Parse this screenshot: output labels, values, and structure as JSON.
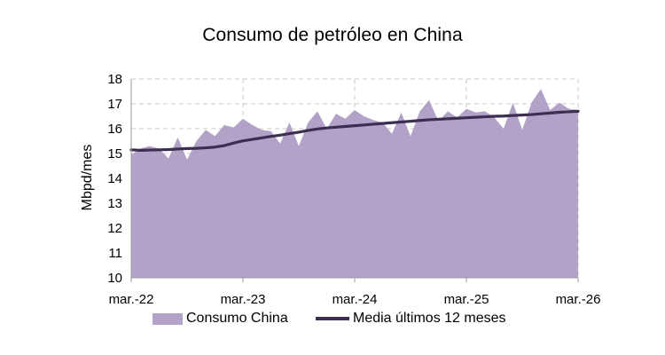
{
  "chart_data": {
    "type": "area",
    "title": "Consumo de petróleo en China",
    "xlabel": "",
    "ylabel": "Mbpd/mes",
    "ylim": [
      10,
      18
    ],
    "yticks": [
      "10",
      "11",
      "12",
      "13",
      "14",
      "15",
      "16",
      "17",
      "18"
    ],
    "xtick_labels": [
      "mar.-22",
      "mar.-23",
      "mar.-24",
      "mar.-25",
      "mar.-26"
    ],
    "x_start": "mar.-22",
    "x_end": "mar.-26",
    "grid": true,
    "legend_position": "bottom",
    "series": [
      {
        "name": "Consumo China",
        "kind": "area",
        "color": "#b3a2c8",
        "values": [
          14.95,
          15.2,
          15.3,
          15.2,
          14.8,
          15.65,
          14.75,
          15.5,
          15.95,
          15.7,
          16.15,
          16.05,
          16.4,
          16.15,
          15.95,
          15.9,
          15.4,
          16.25,
          15.3,
          16.25,
          16.7,
          16.0,
          16.6,
          16.4,
          16.75,
          16.5,
          16.35,
          16.25,
          15.8,
          16.65,
          15.7,
          16.7,
          17.15,
          16.3,
          16.7,
          16.45,
          16.8,
          16.65,
          16.7,
          16.45,
          16.0,
          17.05,
          15.95,
          17.05,
          17.6,
          16.75,
          17.05,
          16.8,
          16.75
        ]
      },
      {
        "name": "Media últimos 12 meses",
        "kind": "line",
        "color": "#3d2e51",
        "values": [
          15.15,
          15.13,
          15.14,
          15.15,
          15.16,
          15.18,
          15.2,
          15.21,
          15.23,
          15.26,
          15.32,
          15.42,
          15.51,
          15.57,
          15.63,
          15.69,
          15.74,
          15.8,
          15.86,
          15.93,
          15.99,
          16.03,
          16.06,
          16.09,
          16.12,
          16.15,
          16.18,
          16.21,
          16.24,
          16.27,
          16.3,
          16.33,
          16.36,
          16.38,
          16.4,
          16.42,
          16.44,
          16.46,
          16.48,
          16.5,
          16.51,
          16.53,
          16.55,
          16.57,
          16.6,
          16.63,
          16.66,
          16.68,
          16.7
        ]
      }
    ]
  }
}
